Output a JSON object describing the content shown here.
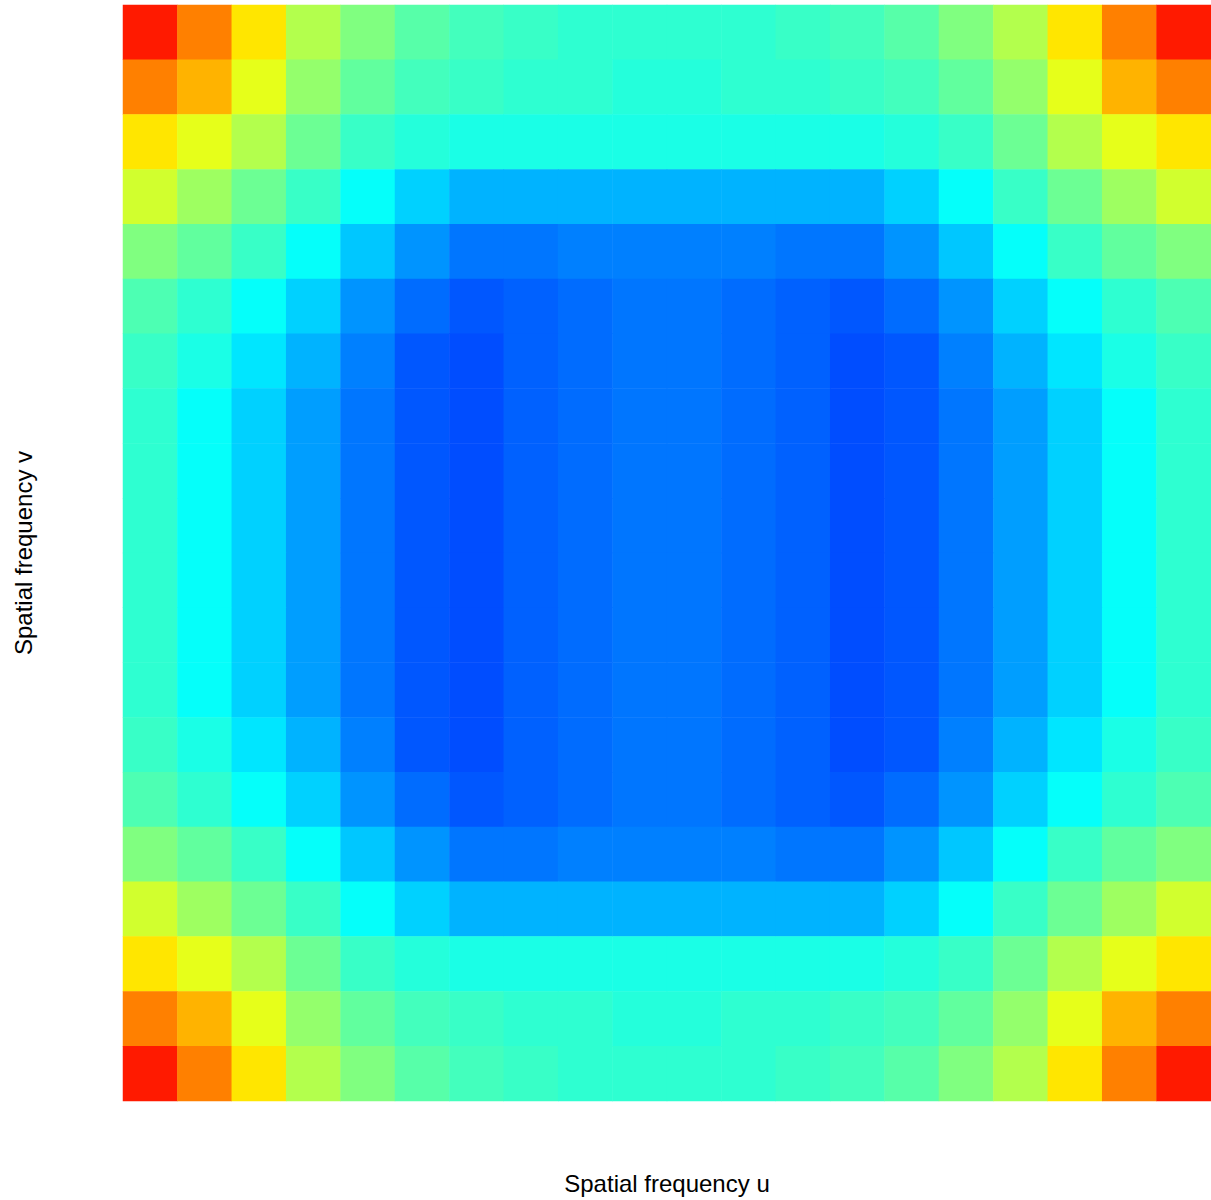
{
  "chart_data": {
    "type": "heatmap",
    "xlabel": "Spatial frequency u",
    "ylabel": "Spatial frequency v",
    "tick_labels": false,
    "grid": false,
    "zlim": [
      0,
      10
    ],
    "cells": [
      [
        8.5,
        7.5,
        6.5,
        5.5,
        5,
        4.6,
        4.4,
        4.3,
        4.2,
        4.2,
        4.2,
        4.2,
        4.3,
        4.4,
        4.6,
        5,
        5.5,
        6.5,
        7.5,
        8.5
      ],
      [
        7.5,
        7,
        6,
        5.2,
        4.7,
        4.4,
        4.3,
        4.2,
        4.2,
        4.1,
        4.1,
        4.2,
        4.2,
        4.3,
        4.4,
        4.7,
        5.2,
        6,
        7,
        7.5
      ],
      [
        6.5,
        6,
        5.5,
        4.8,
        4.3,
        4.1,
        4,
        4,
        4,
        4,
        4,
        4,
        4,
        4,
        4.1,
        4.3,
        4.8,
        5.5,
        6,
        6.5
      ],
      [
        5.8,
        5.3,
        4.8,
        4.3,
        3.8,
        3.3,
        3,
        3,
        3,
        3,
        3,
        3,
        3,
        3,
        3.3,
        3.8,
        4.3,
        4.8,
        5.3,
        5.8
      ],
      [
        5,
        4.7,
        4.3,
        3.8,
        3.2,
        2.7,
        2.4,
        2.4,
        2.5,
        2.5,
        2.5,
        2.5,
        2.4,
        2.4,
        2.7,
        3.2,
        3.8,
        4.3,
        4.7,
        5
      ],
      [
        4.5,
        4.2,
        3.8,
        3.3,
        2.7,
        2.3,
        2.1,
        2.2,
        2.3,
        2.4,
        2.4,
        2.3,
        2.2,
        2.1,
        2.3,
        2.7,
        3.3,
        3.8,
        4.2,
        4.5
      ],
      [
        4.3,
        4,
        3.5,
        3,
        2.5,
        2.1,
        2,
        2.2,
        2.3,
        2.4,
        2.4,
        2.3,
        2.2,
        2,
        2.1,
        2.5,
        3,
        3.5,
        4,
        4.3
      ],
      [
        4.2,
        3.8,
        3.3,
        2.8,
        2.4,
        2.1,
        2,
        2.2,
        2.3,
        2.4,
        2.4,
        2.3,
        2.2,
        2,
        2.1,
        2.4,
        2.8,
        3.3,
        3.8,
        4.2
      ],
      [
        4.2,
        3.8,
        3.3,
        2.8,
        2.4,
        2.1,
        2,
        2.2,
        2.3,
        2.4,
        2.4,
        2.3,
        2.2,
        2,
        2.1,
        2.4,
        2.8,
        3.3,
        3.8,
        4.2
      ],
      [
        4.2,
        3.8,
        3.3,
        2.8,
        2.4,
        2.1,
        2,
        2.2,
        2.3,
        2.4,
        2.4,
        2.3,
        2.2,
        2,
        2.1,
        2.4,
        2.8,
        3.3,
        3.8,
        4.2
      ],
      [
        4.2,
        3.8,
        3.3,
        2.8,
        2.4,
        2.1,
        2,
        2.2,
        2.3,
        2.4,
        2.4,
        2.3,
        2.2,
        2,
        2.1,
        2.4,
        2.8,
        3.3,
        3.8,
        4.2
      ],
      [
        4.2,
        3.8,
        3.3,
        2.8,
        2.4,
        2.1,
        2,
        2.2,
        2.3,
        2.4,
        2.4,
        2.3,
        2.2,
        2,
        2.1,
        2.4,
        2.8,
        3.3,
        3.8,
        4.2
      ],
      [
        4.2,
        3.8,
        3.3,
        2.8,
        2.4,
        2.1,
        2,
        2.2,
        2.3,
        2.4,
        2.4,
        2.3,
        2.2,
        2,
        2.1,
        2.4,
        2.8,
        3.3,
        3.8,
        4.2
      ],
      [
        4.3,
        4,
        3.5,
        3,
        2.5,
        2.1,
        2,
        2.2,
        2.3,
        2.4,
        2.4,
        2.3,
        2.2,
        2,
        2.1,
        2.5,
        3,
        3.5,
        4,
        4.3
      ],
      [
        4.5,
        4.2,
        3.8,
        3.3,
        2.7,
        2.3,
        2.1,
        2.2,
        2.3,
        2.4,
        2.4,
        2.3,
        2.2,
        2.1,
        2.3,
        2.7,
        3.3,
        3.8,
        4.2,
        4.5
      ],
      [
        5,
        4.7,
        4.3,
        3.8,
        3.2,
        2.7,
        2.4,
        2.4,
        2.5,
        2.5,
        2.5,
        2.5,
        2.4,
        2.4,
        2.7,
        3.2,
        3.8,
        4.3,
        4.7,
        5
      ],
      [
        5.8,
        5.3,
        4.8,
        4.3,
        3.8,
        3.3,
        3,
        3,
        3,
        3,
        3,
        3,
        3,
        3,
        3.3,
        3.8,
        4.3,
        4.8,
        5.3,
        5.8
      ],
      [
        6.5,
        6,
        5.5,
        4.8,
        4.3,
        4.1,
        4,
        4,
        4,
        4,
        4,
        4,
        4,
        4,
        4.1,
        4.3,
        4.8,
        5.5,
        6,
        6.5
      ],
      [
        7.5,
        7,
        6,
        5.2,
        4.7,
        4.4,
        4.3,
        4.2,
        4.2,
        4.1,
        4.1,
        4.2,
        4.2,
        4.3,
        4.4,
        4.7,
        5.2,
        6,
        7,
        7.5
      ],
      [
        8.5,
        7.5,
        6.5,
        5.5,
        5,
        4.6,
        4.4,
        4.3,
        4.2,
        4.2,
        4.2,
        4.2,
        4.3,
        4.4,
        4.6,
        5,
        5.5,
        6.5,
        7.5,
        8.5
      ]
    ]
  }
}
